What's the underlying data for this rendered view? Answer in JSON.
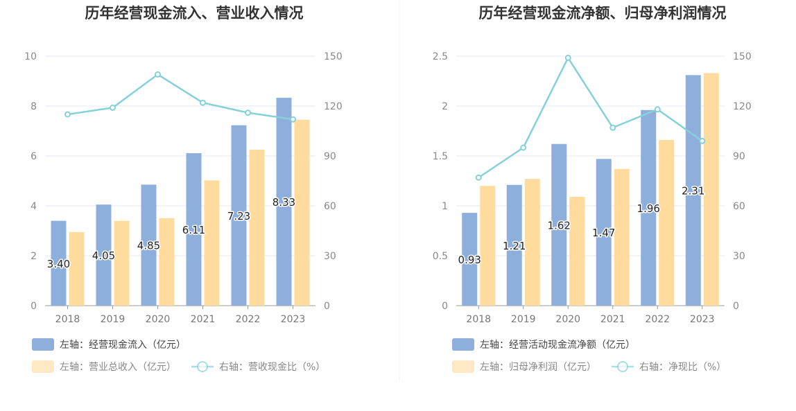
{
  "chart_data": [
    {
      "type": "bar",
      "title": "历年经营现金流入、营业收入情况",
      "categories": [
        "2018",
        "2019",
        "2020",
        "2021",
        "2022",
        "2023"
      ],
      "left_axis": {
        "min": 0,
        "max": 10,
        "ticks": [
          "0",
          "2",
          "4",
          "6",
          "8",
          "10"
        ]
      },
      "right_axis": {
        "min": 0,
        "max": 150,
        "ticks": [
          "0",
          "30",
          "60",
          "90",
          "120",
          "150"
        ]
      },
      "series": [
        {
          "name": "左轴：经营现金流入（亿元）",
          "type": "bar",
          "axis": "left",
          "color": "#8eafdc",
          "values": [
            3.4,
            4.05,
            4.85,
            6.11,
            7.23,
            8.33
          ],
          "labels": [
            "3.40",
            "4.05",
            "4.85",
            "6.11",
            "7.23",
            "8.33"
          ]
        },
        {
          "name": "左轴：营业总收入（亿元）",
          "type": "bar",
          "axis": "left",
          "color": "#ffdb9e",
          "values": [
            2.95,
            3.4,
            3.5,
            5.02,
            6.25,
            7.45
          ]
        },
        {
          "name": "右轴：营收现金比（%）",
          "type": "line",
          "axis": "right",
          "color": "#86d1d8",
          "values": [
            115,
            119,
            139,
            122,
            116,
            112
          ]
        }
      ]
    },
    {
      "type": "bar",
      "title": "历年经营现金流净额、归母净利润情况",
      "categories": [
        "2018",
        "2019",
        "2020",
        "2021",
        "2022",
        "2023"
      ],
      "left_axis": {
        "min": 0,
        "max": 2.5,
        "ticks": [
          "0",
          "0.5",
          "1",
          "1.5",
          "2",
          "2.5"
        ]
      },
      "right_axis": {
        "min": 0,
        "max": 150,
        "ticks": [
          "0",
          "30",
          "60",
          "90",
          "120",
          "150"
        ]
      },
      "series": [
        {
          "name": "左轴：经营活动现金流净额（亿元）",
          "type": "bar",
          "axis": "left",
          "color": "#8eafdc",
          "values": [
            0.93,
            1.21,
            1.62,
            1.47,
            1.96,
            2.31
          ],
          "labels": [
            "0.93",
            "1.21",
            "1.62",
            "1.47",
            "1.96",
            "2.31"
          ]
        },
        {
          "name": "左轴：归母净利润（亿元）",
          "type": "bar",
          "axis": "left",
          "color": "#ffdb9e",
          "values": [
            1.2,
            1.27,
            1.09,
            1.37,
            1.66,
            2.33
          ]
        },
        {
          "name": "右轴：净现比（%）",
          "type": "line",
          "axis": "right",
          "color": "#86d1d8",
          "values": [
            77,
            95,
            149,
            107,
            118,
            99
          ]
        }
      ]
    }
  ]
}
